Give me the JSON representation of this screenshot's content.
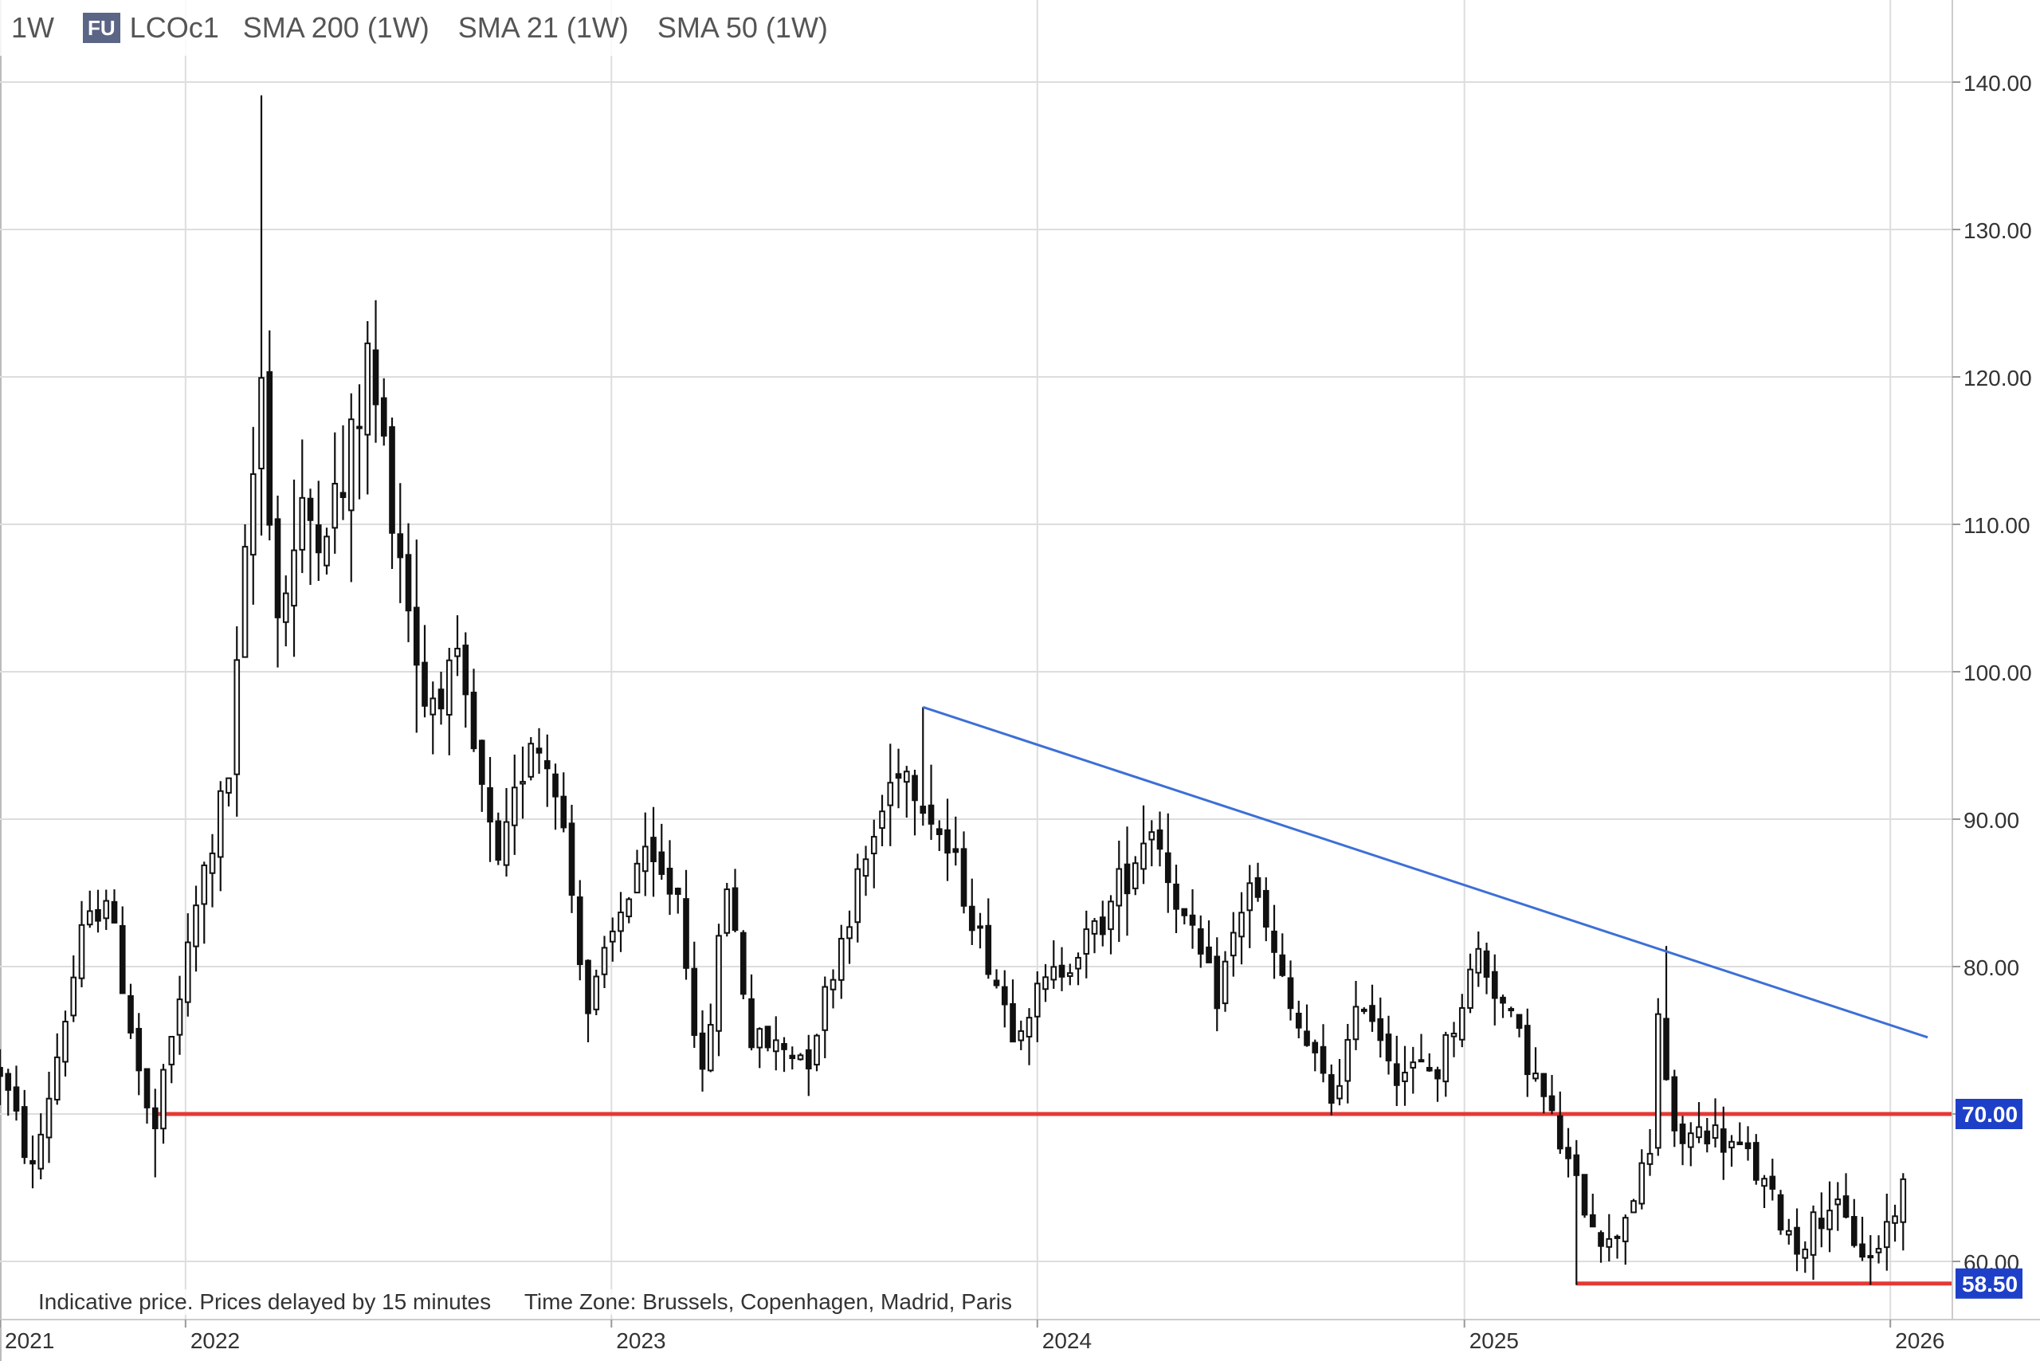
{
  "header": {
    "interval": "1W",
    "exchange_badge": "FU",
    "symbol": "LCOc1",
    "indicators": [
      "SMA 200 (1W)",
      "SMA 21 (1W)",
      "SMA 50 (1W)"
    ]
  },
  "footer": {
    "note": "Indicative price. Prices delayed by 15 minutes",
    "timezone": "Time Zone: Brussels, Copenhagen, Madrid, Paris"
  },
  "colors": {
    "candle": "#111111",
    "support": "#e53935",
    "trendline": "#3d6fd6",
    "label_bg": "#1e40c8",
    "grid": "#dddddd"
  },
  "chart_data": {
    "type": "candlestick",
    "interval": "1W",
    "symbol": "LCOc1",
    "y_range": [
      56,
      145
    ],
    "y_ticks": [
      "140.00",
      "130.00",
      "120.00",
      "110.00",
      "100.00",
      "90.00",
      "80.00",
      "70.00",
      "60.00"
    ],
    "x_range": [
      "2021-07-26",
      "2026-01-20"
    ],
    "x_ticks": [
      {
        "label": "2021",
        "date": "2021-07-26"
      },
      {
        "label": "2022",
        "date": "2022-01-01"
      },
      {
        "label": "2023",
        "date": "2023-01-01"
      },
      {
        "label": "2024",
        "date": "2024-01-01"
      },
      {
        "label": "2025",
        "date": "2025-01-01"
      },
      {
        "label": "2026",
        "date": "2026-01-01"
      }
    ],
    "anchor_closes": [
      [
        "2021-07-26",
        73
      ],
      [
        "2021-08-23",
        66
      ],
      [
        "2021-10-04",
        82
      ],
      [
        "2021-10-25",
        85
      ],
      [
        "2021-11-29",
        70
      ],
      [
        "2021-12-06",
        69
      ],
      [
        "2022-01-10",
        84
      ],
      [
        "2022-02-07",
        93
      ],
      [
        "2022-03-07",
        120
      ],
      [
        "2022-03-21",
        104
      ],
      [
        "2022-04-11",
        110
      ],
      [
        "2022-05-16",
        112
      ],
      [
        "2022-06-06",
        121
      ],
      [
        "2022-06-27",
        112
      ],
      [
        "2022-07-25",
        98
      ],
      [
        "2022-08-22",
        100
      ],
      [
        "2022-09-26",
        86
      ],
      [
        "2022-10-24",
        96
      ],
      [
        "2022-11-14",
        93
      ],
      [
        "2022-12-12",
        77
      ],
      [
        "2023-01-23",
        87
      ],
      [
        "2023-02-27",
        85
      ],
      [
        "2023-03-20",
        72
      ],
      [
        "2023-04-10",
        86
      ],
      [
        "2023-05-01",
        75
      ],
      [
        "2023-06-19",
        74
      ],
      [
        "2023-07-17",
        82
      ],
      [
        "2023-09-04",
        94
      ],
      [
        "2023-09-25",
        92
      ],
      [
        "2023-10-30",
        85
      ],
      [
        "2023-12-11",
        76
      ],
      [
        "2024-01-22",
        80
      ],
      [
        "2024-02-26",
        83
      ],
      [
        "2024-04-08",
        90
      ],
      [
        "2024-05-06",
        83
      ],
      [
        "2024-06-03",
        78
      ],
      [
        "2024-07-01",
        86
      ],
      [
        "2024-08-05",
        77
      ],
      [
        "2024-09-09",
        71
      ],
      [
        "2024-10-07",
        78
      ],
      [
        "2024-11-04",
        73
      ],
      [
        "2024-12-09",
        73
      ],
      [
        "2025-01-13",
        81
      ],
      [
        "2025-02-17",
        75
      ],
      [
        "2025-03-10",
        71
      ],
      [
        "2025-04-07",
        65
      ],
      [
        "2025-05-05",
        61
      ],
      [
        "2025-06-09",
        67
      ],
      [
        "2025-06-16",
        77
      ],
      [
        "2025-06-30",
        68
      ],
      [
        "2025-07-28",
        69
      ],
      [
        "2025-09-01",
        67
      ],
      [
        "2025-10-13",
        61
      ],
      [
        "2025-11-10",
        64
      ],
      [
        "2025-12-15",
        60
      ],
      [
        "2026-01-12",
        65
      ]
    ],
    "spikes": [
      {
        "date": "2022-03-07",
        "high": 139.1
      },
      {
        "date": "2022-06-13",
        "high": 125.2
      },
      {
        "date": "2023-09-25",
        "high": 97.6
      },
      {
        "date": "2025-06-23",
        "high": 81.4
      },
      {
        "date": "2025-04-07",
        "low": 58.4
      },
      {
        "date": "2021-12-06",
        "low": 65.7
      }
    ],
    "horizontal_lines": [
      {
        "value": 70.0,
        "label": "70.00",
        "from": "2021-12-06"
      },
      {
        "value": 58.5,
        "label": "58.50",
        "from": "2025-04-07"
      }
    ],
    "trendline": {
      "start": [
        "2023-09-25",
        97.6
      ],
      "end": [
        "2026-02-02",
        75.2
      ]
    },
    "last_close": 65.2
  }
}
